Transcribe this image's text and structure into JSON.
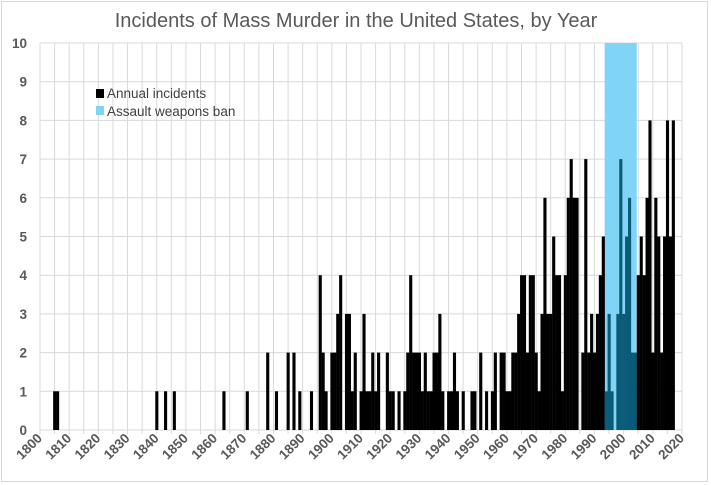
{
  "chart_data": {
    "type": "bar",
    "title": "Incidents of Mass Murder in the United States, by Year",
    "xlabel": "",
    "ylabel": "",
    "xlim": [
      1800,
      2020
    ],
    "ylim": [
      0,
      10
    ],
    "yticks": [
      "0",
      "1",
      "2",
      "3",
      "4",
      "5",
      "6",
      "7",
      "8",
      "9",
      "10"
    ],
    "xticks": [
      "1800",
      "1810",
      "1820",
      "1830",
      "1840",
      "1850",
      "1860",
      "1870",
      "1880",
      "1890",
      "1900",
      "1910",
      "1920",
      "1930",
      "1940",
      "1950",
      "1960",
      "1970",
      "1980",
      "1990",
      "2000",
      "2010",
      "2020"
    ],
    "grid": true,
    "legend_position": "top-left",
    "series": [
      {
        "name": "Annual incidents",
        "color": "#000000",
        "shaded_color": "#0b5a78",
        "years": [
          1805,
          1806,
          1840,
          1843,
          1846,
          1863,
          1871,
          1878,
          1881,
          1885,
          1887,
          1889,
          1893,
          1896,
          1897,
          1898,
          1900,
          1901,
          1902,
          1903,
          1905,
          1906,
          1907,
          1908,
          1910,
          1911,
          1912,
          1913,
          1914,
          1915,
          1916,
          1919,
          1920,
          1921,
          1923,
          1925,
          1926,
          1927,
          1928,
          1929,
          1930,
          1931,
          1932,
          1933,
          1934,
          1935,
          1936,
          1937,
          1938,
          1940,
          1941,
          1942,
          1943,
          1945,
          1948,
          1949,
          1951,
          1953,
          1955,
          1956,
          1958,
          1959,
          1960,
          1961,
          1962,
          1963,
          1964,
          1965,
          1966,
          1967,
          1968,
          1969,
          1970,
          1971,
          1972,
          1973,
          1974,
          1975,
          1976,
          1977,
          1978,
          1979,
          1980,
          1981,
          1982,
          1983,
          1984,
          1986,
          1987,
          1988,
          1989,
          1990,
          1991,
          1992,
          1993,
          1994,
          1995,
          1996,
          1998,
          1999,
          2000,
          2001,
          2002,
          2003,
          2004,
          2005,
          2006,
          2007,
          2008,
          2009,
          2010,
          2011,
          2012,
          2013,
          2014,
          2015,
          2016,
          2017
        ],
        "values": [
          1,
          1,
          1,
          1,
          1,
          1,
          1,
          2,
          1,
          2,
          2,
          1,
          1,
          4,
          2,
          1,
          2,
          2,
          3,
          4,
          3,
          3,
          1,
          2,
          1,
          3,
          1,
          1,
          2,
          1,
          2,
          2,
          1,
          1,
          1,
          1,
          2,
          4,
          2,
          2,
          2,
          1,
          2,
          1,
          1,
          2,
          2,
          3,
          1,
          1,
          1,
          2,
          1,
          1,
          1,
          1,
          2,
          1,
          1,
          2,
          2,
          2,
          1,
          1,
          2,
          2,
          3,
          4,
          4,
          2,
          4,
          4,
          2,
          1,
          3,
          6,
          3,
          3,
          5,
          4,
          4,
          1,
          4,
          6,
          7,
          6,
          6,
          2,
          7,
          2,
          3,
          2,
          3,
          4,
          5,
          1,
          3,
          1,
          3,
          7,
          3,
          5,
          6,
          2,
          2,
          4,
          5,
          4,
          6,
          8,
          2,
          6,
          5,
          2,
          5,
          8,
          5,
          8
        ]
      },
      {
        "name": "Assault weapons ban",
        "color": "#80d4f5",
        "range": [
          1994,
          2004
        ]
      }
    ]
  }
}
